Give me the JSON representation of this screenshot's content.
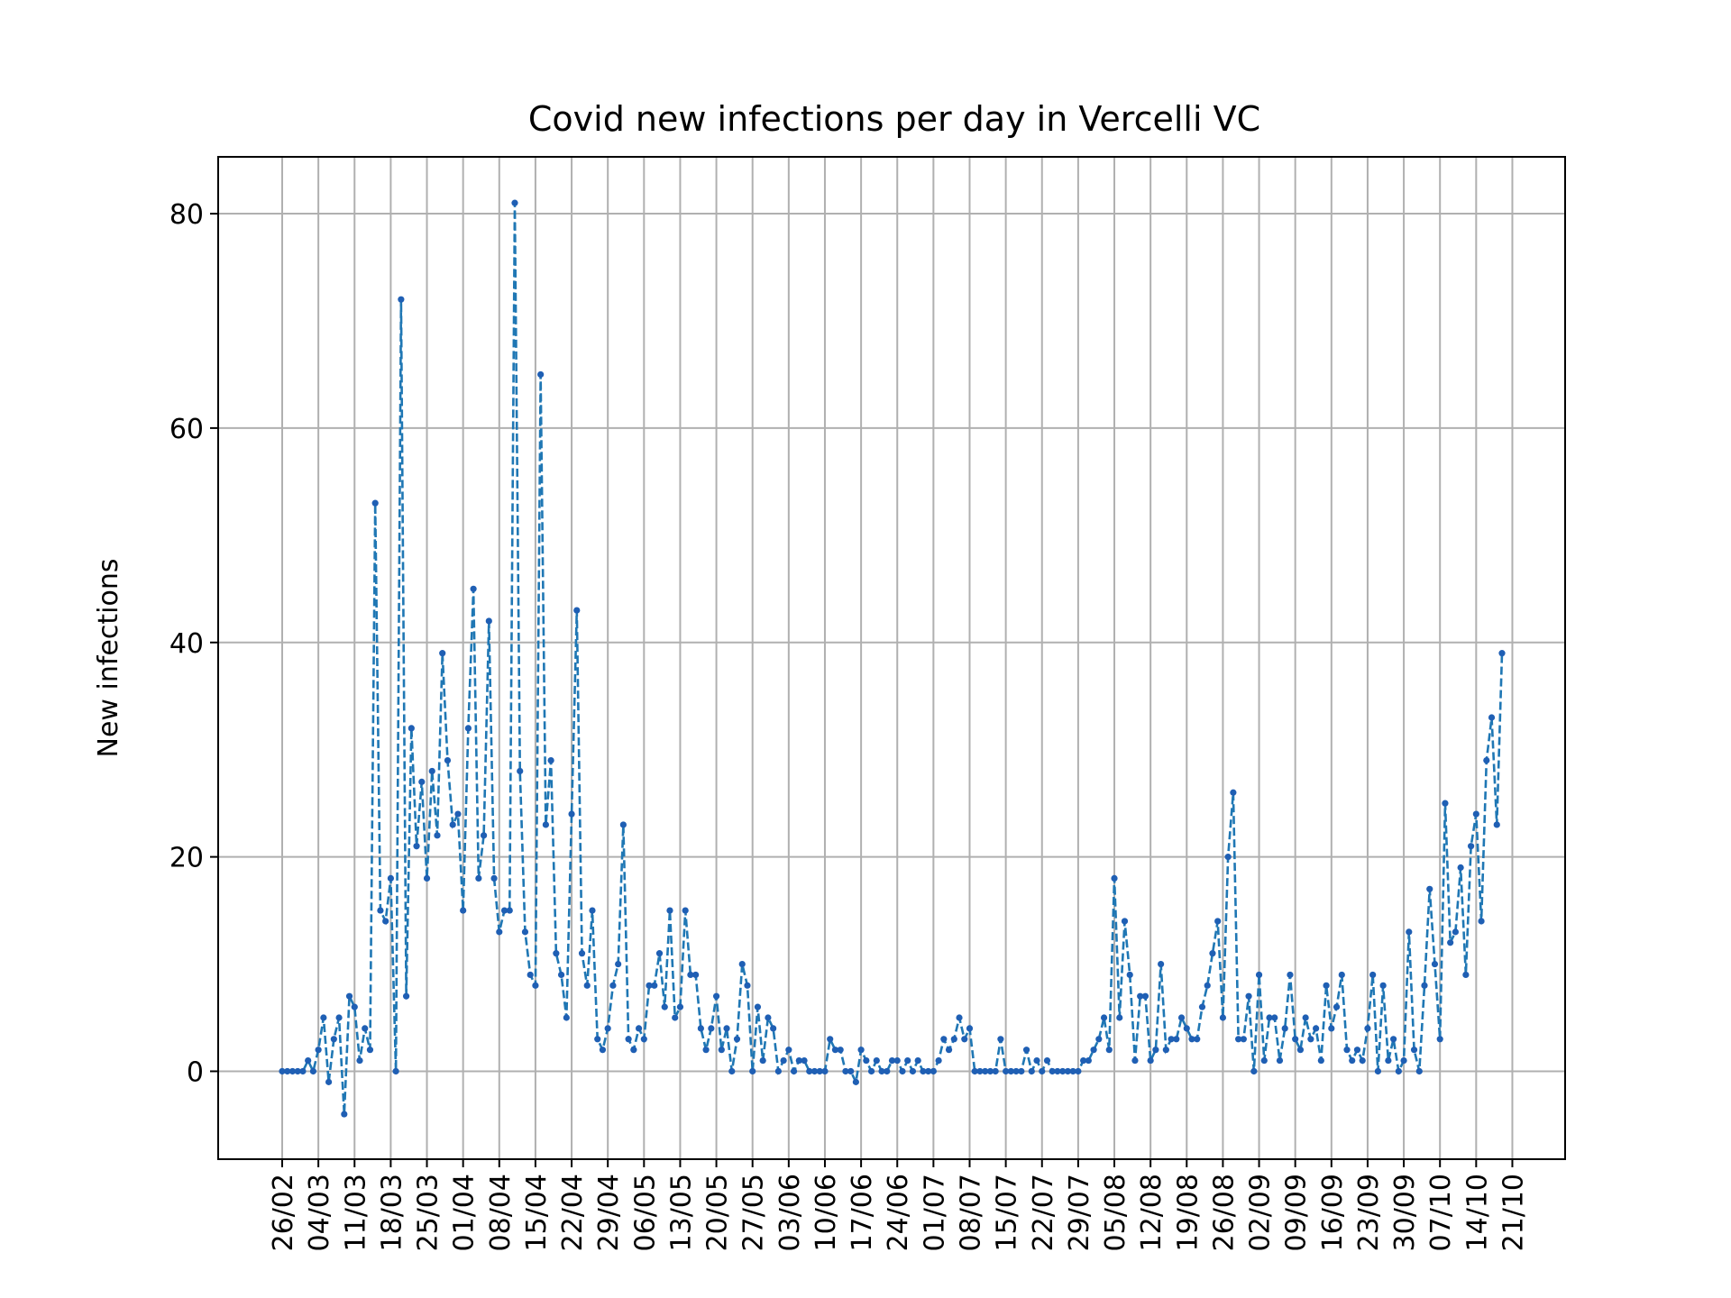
{
  "chart_data": {
    "type": "line",
    "title": "Covid new infections per day in Vercelli VC",
    "xlabel": "",
    "ylabel": "New infections",
    "ylim": [
      -8.2,
      85.3
    ],
    "yticks": [
      0,
      20,
      40,
      60,
      80
    ],
    "grid": true,
    "line_style": "dashed",
    "marker": "dot",
    "colors": {
      "line": "#1f77b4",
      "marker": "#1f5fb4",
      "grid": "#b0b0b0"
    },
    "xtick_labels": [
      "26/02",
      "04/03",
      "11/03",
      "18/03",
      "25/03",
      "01/04",
      "08/04",
      "15/04",
      "22/04",
      "29/04",
      "06/05",
      "13/05",
      "20/05",
      "27/05",
      "03/06",
      "10/06",
      "17/06",
      "24/06",
      "01/07",
      "08/07",
      "15/07",
      "22/07",
      "29/07",
      "05/08",
      "12/08",
      "19/08",
      "26/08",
      "02/09",
      "09/09",
      "16/09",
      "23/09",
      "30/09",
      "07/10",
      "14/10",
      "21/10"
    ],
    "series": [
      {
        "values": [
          0,
          0,
          0,
          0,
          0,
          1,
          0,
          2,
          5,
          -1,
          3,
          5,
          -4,
          7,
          6,
          1,
          4,
          2,
          53,
          15,
          14,
          18,
          0,
          72,
          7,
          32,
          21,
          27,
          18,
          28,
          22,
          39,
          29,
          23,
          24,
          15,
          32,
          45,
          18,
          22,
          42,
          18,
          13,
          15,
          15,
          81,
          28,
          13,
          9,
          8,
          65,
          23,
          29,
          11,
          9,
          5,
          24,
          43,
          11,
          8,
          15,
          3,
          2,
          4,
          8,
          10,
          23,
          3,
          2,
          4,
          3,
          8,
          8,
          11,
          6,
          15,
          5,
          6,
          15,
          9,
          9,
          4,
          2,
          4,
          7,
          2,
          4,
          0,
          3,
          10,
          8,
          0,
          6,
          1,
          5,
          4,
          0,
          1,
          2,
          0,
          1,
          1,
          0,
          0,
          0,
          0,
          3,
          2,
          2,
          0,
          0,
          -1,
          2,
          1,
          0,
          1,
          0,
          0,
          1,
          1,
          0,
          1,
          0,
          1,
          0,
          0,
          0,
          1,
          3,
          2,
          3,
          5,
          3,
          4,
          0,
          0,
          0,
          0,
          0,
          3,
          0,
          0,
          0,
          0,
          2,
          0,
          1,
          0,
          1,
          0,
          0,
          0,
          0,
          0,
          0,
          1,
          1,
          2,
          3,
          5,
          2,
          18,
          5,
          14,
          9,
          1,
          7,
          7,
          1,
          2,
          10,
          2,
          3,
          3,
          5,
          4,
          3,
          3,
          6,
          8,
          11,
          14,
          5,
          20,
          26,
          3,
          3,
          7,
          0,
          9,
          1,
          5,
          5,
          1,
          4,
          9,
          3,
          2,
          5,
          3,
          4,
          1,
          8,
          4,
          6,
          9,
          2,
          1,
          2,
          1,
          4,
          9,
          0,
          8,
          1,
          3,
          0,
          1,
          13,
          2,
          0,
          8,
          17,
          10,
          3,
          25,
          12,
          13,
          19,
          9,
          21,
          24,
          14,
          29,
          33,
          23,
          39
        ]
      }
    ]
  }
}
